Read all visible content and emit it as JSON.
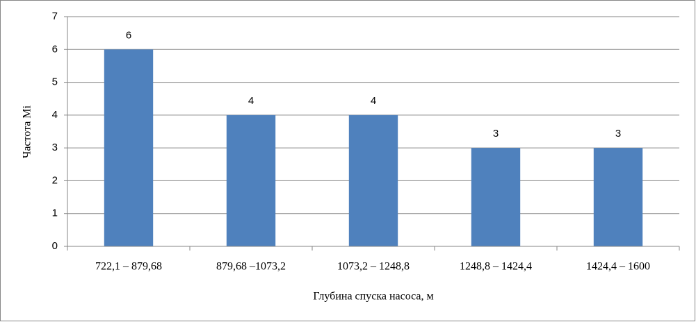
{
  "chart_data": {
    "type": "bar",
    "categories": [
      "722,1 – 879,68",
      "879,68 –1073,2",
      "1073,2 – 1248,8",
      "1248,8 – 1424,4",
      "1424,4 – 1600"
    ],
    "values": [
      6,
      4,
      4,
      3,
      3
    ],
    "color": "#4f81bd",
    "xlabel": "Глубина спуска насоса, м",
    "ylabel": "Частота Mi",
    "ylim": [
      0,
      7
    ],
    "yticks": [
      0,
      1,
      2,
      3,
      4,
      5,
      6,
      7
    ],
    "grid": true
  }
}
